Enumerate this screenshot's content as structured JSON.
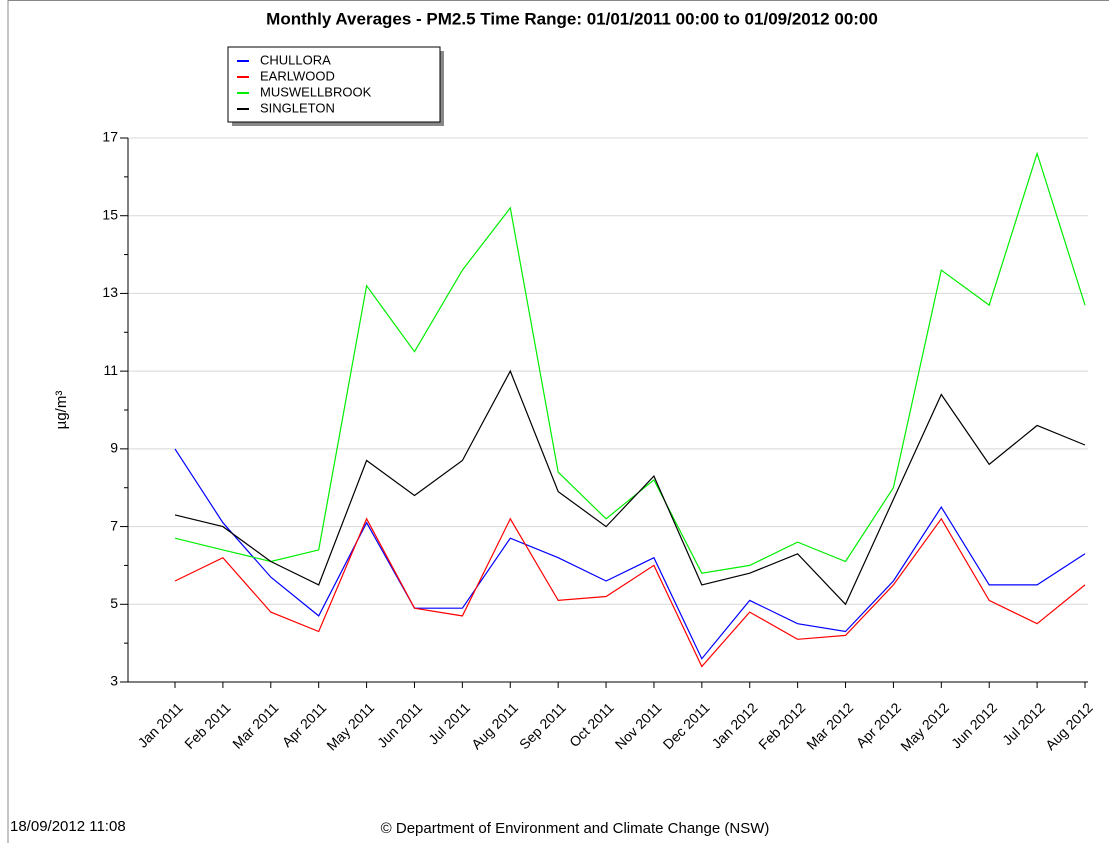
{
  "chart_data": {
    "type": "line",
    "title": "Monthly Averages - PM2.5 Time Range: 01/01/2011 00:00 to 01/09/2012 00:00",
    "y_label": "µg/m³",
    "timestamp": "18/09/2012 11:08",
    "footer": "© Department of Environment and Climate Change (NSW)",
    "categories": [
      "Jan 2011",
      "Feb 2011",
      "Mar 2011",
      "Apr 2011",
      "May 2011",
      "Jun 2011",
      "Jul 2011",
      "Aug 2011",
      "Sep 2011",
      "Oct 2011",
      "Nov 2011",
      "Dec 2011",
      "Jan 2012",
      "Feb 2012",
      "Mar 2012",
      "Apr 2012",
      "May 2012",
      "Jun 2012",
      "Jul 2012",
      "Aug 2012"
    ],
    "series": [
      {
        "name": "CHULLORA",
        "color": "#0000ff",
        "values": [
          9.0,
          7.1,
          5.7,
          4.7,
          7.1,
          4.9,
          4.9,
          6.7,
          6.2,
          5.6,
          6.2,
          3.6,
          5.1,
          4.5,
          4.3,
          5.6,
          7.5,
          5.5,
          5.5,
          6.3
        ]
      },
      {
        "name": "EARLWOOD",
        "color": "#ff0000",
        "values": [
          5.6,
          6.2,
          4.8,
          4.3,
          7.2,
          4.9,
          4.7,
          7.2,
          5.1,
          5.2,
          6.0,
          3.4,
          4.8,
          4.1,
          4.2,
          5.5,
          7.2,
          5.1,
          4.5,
          5.5
        ]
      },
      {
        "name": "MUSWELLBROOK",
        "color": "#00ee00",
        "values": [
          6.7,
          6.4,
          6.1,
          6.4,
          13.2,
          11.5,
          13.6,
          15.2,
          8.4,
          7.2,
          8.2,
          5.8,
          6.0,
          6.6,
          6.1,
          8.0,
          13.6,
          12.7,
          16.6,
          12.7
        ]
      },
      {
        "name": "SINGLETON",
        "color": "#000000",
        "values": [
          7.3,
          7.0,
          6.1,
          5.5,
          8.7,
          7.8,
          8.7,
          11.0,
          7.9,
          7.0,
          8.3,
          5.5,
          5.8,
          6.3,
          5.0,
          7.7,
          10.4,
          8.6,
          9.6,
          9.1
        ]
      }
    ],
    "ylim": [
      3,
      17
    ],
    "yticks": [
      3,
      5,
      7,
      9,
      11,
      13,
      15,
      17
    ],
    "minor_yticks": [
      4,
      6,
      8,
      10,
      12,
      14,
      16
    ],
    "grid": true,
    "legend": "top-left"
  }
}
